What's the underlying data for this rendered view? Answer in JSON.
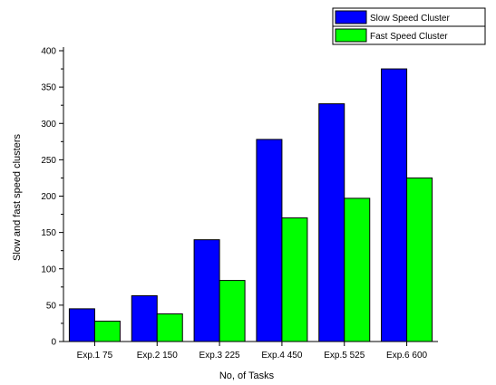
{
  "chart_data": {
    "type": "bar",
    "xlabel": "No, of Tasks",
    "ylabel": "Slow and fast speed clusters",
    "categories": [
      "Exp.1 75",
      "Exp.2 150",
      "Exp.3 225",
      "Exp.4 450",
      "Exp.5 525",
      "Exp.6 600"
    ],
    "series": [
      {
        "name": "Slow Speed Cluster",
        "color": "#0000ff",
        "values": [
          45,
          63,
          140,
          278,
          327,
          375
        ]
      },
      {
        "name": "Fast Speed Cluster",
        "color": "#00ff00",
        "values": [
          28,
          38,
          84,
          170,
          197,
          225
        ]
      }
    ],
    "ylim": [
      0,
      400
    ],
    "yticks": [
      0,
      50,
      100,
      150,
      200,
      250,
      300,
      350,
      400
    ],
    "grid": false,
    "legend": "top-right"
  }
}
